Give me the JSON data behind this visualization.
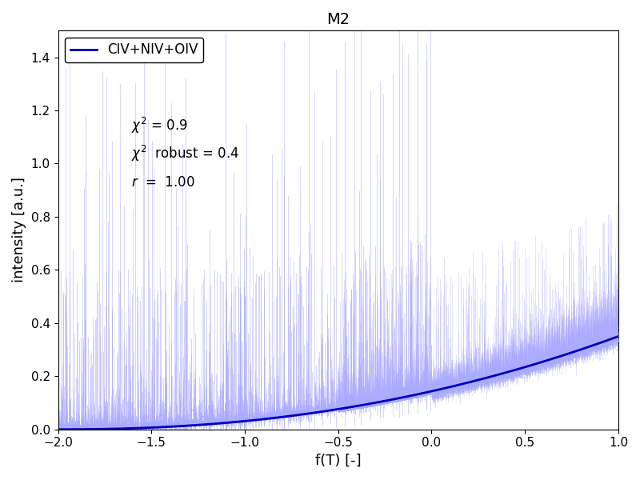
{
  "title": "M2",
  "xlabel": "f(T) [-]",
  "ylabel": "intensity [a.u.]",
  "legend_label": "CIV+NIV+OIV",
  "xlim": [
    -2.0,
    1.0
  ],
  "ylim": [
    0.0,
    1.5
  ],
  "yticks": [
    0.0,
    0.2,
    0.4,
    0.6,
    0.8,
    1.0,
    1.2,
    1.4
  ],
  "xticks": [
    -2.0,
    -1.5,
    -1.0,
    -0.5,
    0.0,
    0.5,
    1.0
  ],
  "chi2": 0.9,
  "chi2_robust": 0.4,
  "r": 1.0,
  "line_color": "#0000bb",
  "scatter_color": "#aaaaff",
  "seed": 42,
  "figsize": [
    8.0,
    6.0
  ],
  "dpi": 100
}
